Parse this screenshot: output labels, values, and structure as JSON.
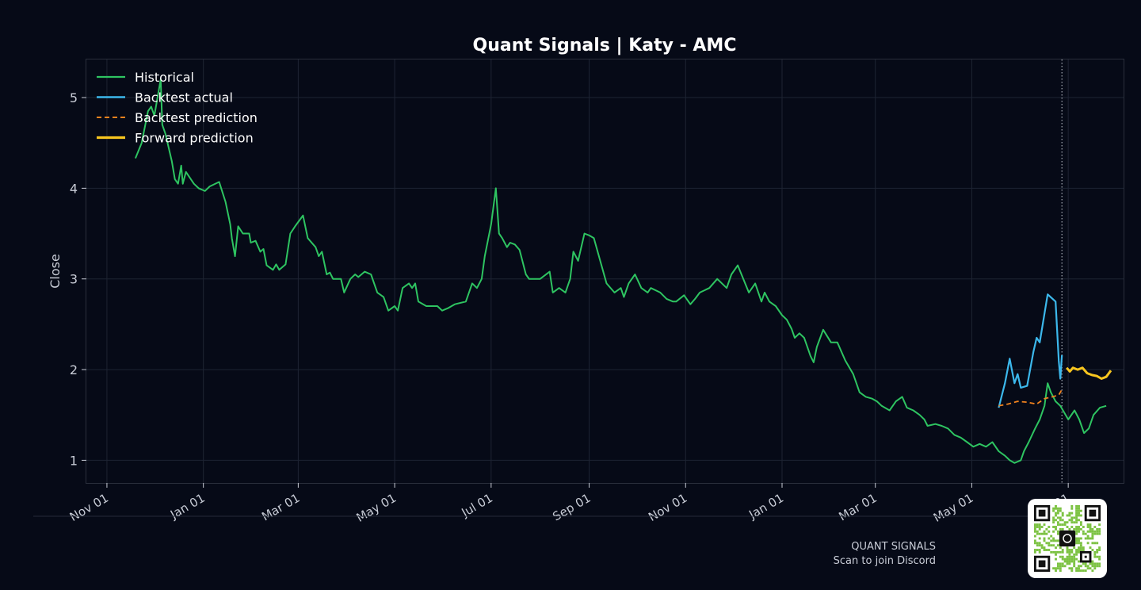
{
  "chart_data": {
    "type": "line",
    "title": "Quant Signals | Katy - AMC",
    "xlabel": "",
    "ylabel": "Close",
    "ylim": [
      0.75,
      5.42
    ],
    "xlim": [
      "2023-10-19",
      "2025-08-05"
    ],
    "grid": true,
    "legend_position": "top-left",
    "x_tick_labels": [
      "Nov 01",
      "Jan 01",
      "Mar 01",
      "May 01",
      "Jul 01",
      "Sep 01",
      "Nov 01",
      "Jan 01",
      "Mar 01",
      "May 01",
      "Jul 01"
    ],
    "x_tick_dates": [
      "2023-11-01",
      "2024-01-01",
      "2024-03-01",
      "2024-05-01",
      "2024-07-01",
      "2024-09-01",
      "2024-11-01",
      "2025-01-01",
      "2025-03-01",
      "2025-05-01",
      "2025-07-01"
    ],
    "y_ticks": [
      1,
      2,
      3,
      4,
      5
    ],
    "vline_date": "2025-06-27",
    "colors": {
      "historical": "#2ec461",
      "backtest_actual": "#3cb8ec",
      "backtest_prediction": "#f0821e",
      "forward_prediction": "#f7c51f",
      "background": "#060a17",
      "plot_border": "#2a2f3c",
      "grid": "#1e2433",
      "text": "#c8ccd6"
    },
    "series": [
      {
        "name": "Historical",
        "style": "solid",
        "points": [
          [
            "2023-11-19",
            4.33
          ],
          [
            "2023-11-23",
            4.5
          ],
          [
            "2023-11-27",
            4.85
          ],
          [
            "2023-11-29",
            4.9
          ],
          [
            "2023-12-01",
            4.8
          ],
          [
            "2023-12-05",
            5.2
          ],
          [
            "2023-12-06",
            4.7
          ],
          [
            "2023-12-08",
            4.6
          ],
          [
            "2023-12-12",
            4.3
          ],
          [
            "2023-12-14",
            4.1
          ],
          [
            "2023-12-16",
            4.05
          ],
          [
            "2023-12-18",
            4.25
          ],
          [
            "2023-12-19",
            4.05
          ],
          [
            "2023-12-21",
            4.18
          ],
          [
            "2023-12-26",
            4.05
          ],
          [
            "2023-12-29",
            4.0
          ],
          [
            "2024-01-02",
            3.97
          ],
          [
            "2024-01-05",
            4.02
          ],
          [
            "2024-01-11",
            4.07
          ],
          [
            "2024-01-15",
            3.85
          ],
          [
            "2024-01-18",
            3.6
          ],
          [
            "2024-01-19",
            3.45
          ],
          [
            "2024-01-21",
            3.25
          ],
          [
            "2024-01-23",
            3.58
          ],
          [
            "2024-01-26",
            3.5
          ],
          [
            "2024-01-30",
            3.5
          ],
          [
            "2024-01-31",
            3.4
          ],
          [
            "2024-02-03",
            3.42
          ],
          [
            "2024-02-06",
            3.3
          ],
          [
            "2024-02-08",
            3.33
          ],
          [
            "2024-02-10",
            3.15
          ],
          [
            "2024-02-14",
            3.1
          ],
          [
            "2024-02-16",
            3.16
          ],
          [
            "2024-02-18",
            3.1
          ],
          [
            "2024-02-22",
            3.16
          ],
          [
            "2024-02-25",
            3.5
          ],
          [
            "2024-02-28",
            3.58
          ],
          [
            "2024-03-04",
            3.7
          ],
          [
            "2024-03-07",
            3.45
          ],
          [
            "2024-03-12",
            3.35
          ],
          [
            "2024-03-14",
            3.25
          ],
          [
            "2024-03-16",
            3.3
          ],
          [
            "2024-03-19",
            3.05
          ],
          [
            "2024-03-21",
            3.07
          ],
          [
            "2024-03-23",
            3.0
          ],
          [
            "2024-03-28",
            3.0
          ],
          [
            "2024-03-30",
            2.85
          ],
          [
            "2024-04-03",
            3.0
          ],
          [
            "2024-04-06",
            3.05
          ],
          [
            "2024-04-08",
            3.02
          ],
          [
            "2024-04-12",
            3.08
          ],
          [
            "2024-04-16",
            3.05
          ],
          [
            "2024-04-20",
            2.85
          ],
          [
            "2024-04-24",
            2.8
          ],
          [
            "2024-04-27",
            2.65
          ],
          [
            "2024-05-01",
            2.7
          ],
          [
            "2024-05-03",
            2.65
          ],
          [
            "2024-05-06",
            2.9
          ],
          [
            "2024-05-10",
            2.95
          ],
          [
            "2024-05-12",
            2.9
          ],
          [
            "2024-05-14",
            2.95
          ],
          [
            "2024-05-16",
            2.75
          ],
          [
            "2024-05-21",
            2.7
          ],
          [
            "2024-05-28",
            2.7
          ],
          [
            "2024-05-31",
            2.65
          ],
          [
            "2024-06-04",
            2.68
          ],
          [
            "2024-06-08",
            2.72
          ],
          [
            "2024-06-15",
            2.75
          ],
          [
            "2024-06-19",
            2.95
          ],
          [
            "2024-06-22",
            2.9
          ],
          [
            "2024-06-25",
            3.0
          ],
          [
            "2024-06-27",
            3.25
          ],
          [
            "2024-07-01",
            3.6
          ],
          [
            "2024-07-04",
            4.0
          ],
          [
            "2024-07-06",
            3.5
          ],
          [
            "2024-07-08",
            3.45
          ],
          [
            "2024-07-11",
            3.35
          ],
          [
            "2024-07-13",
            3.4
          ],
          [
            "2024-07-16",
            3.38
          ],
          [
            "2024-07-19",
            3.32
          ],
          [
            "2024-07-23",
            3.05
          ],
          [
            "2024-07-25",
            3.0
          ],
          [
            "2024-08-01",
            3.0
          ],
          [
            "2024-08-07",
            3.08
          ],
          [
            "2024-08-09",
            2.85
          ],
          [
            "2024-08-13",
            2.9
          ],
          [
            "2024-08-17",
            2.85
          ],
          [
            "2024-08-20",
            3.0
          ],
          [
            "2024-08-22",
            3.3
          ],
          [
            "2024-08-25",
            3.2
          ],
          [
            "2024-08-29",
            3.5
          ],
          [
            "2024-09-01",
            3.48
          ],
          [
            "2024-09-04",
            3.45
          ],
          [
            "2024-09-08",
            3.2
          ],
          [
            "2024-09-12",
            2.95
          ],
          [
            "2024-09-17",
            2.85
          ],
          [
            "2024-09-21",
            2.9
          ],
          [
            "2024-09-23",
            2.8
          ],
          [
            "2024-09-26",
            2.95
          ],
          [
            "2024-09-30",
            3.05
          ],
          [
            "2024-10-04",
            2.9
          ],
          [
            "2024-10-08",
            2.85
          ],
          [
            "2024-10-10",
            2.9
          ],
          [
            "2024-10-16",
            2.85
          ],
          [
            "2024-10-20",
            2.78
          ],
          [
            "2024-10-24",
            2.75
          ],
          [
            "2024-10-26",
            2.75
          ],
          [
            "2024-10-31",
            2.82
          ],
          [
            "2024-11-04",
            2.72
          ],
          [
            "2024-11-07",
            2.78
          ],
          [
            "2024-11-10",
            2.85
          ],
          [
            "2024-11-16",
            2.9
          ],
          [
            "2024-11-21",
            3.0
          ],
          [
            "2024-11-27",
            2.9
          ],
          [
            "2024-11-30",
            3.05
          ],
          [
            "2024-12-04",
            3.15
          ],
          [
            "2024-12-11",
            2.85
          ],
          [
            "2024-12-15",
            2.95
          ],
          [
            "2024-12-19",
            2.75
          ],
          [
            "2024-12-21",
            2.85
          ],
          [
            "2024-12-24",
            2.75
          ],
          [
            "2024-12-28",
            2.7
          ],
          [
            "2025-01-01",
            2.6
          ],
          [
            "2025-01-04",
            2.55
          ],
          [
            "2025-01-07",
            2.45
          ],
          [
            "2025-01-09",
            2.35
          ],
          [
            "2025-01-12",
            2.4
          ],
          [
            "2025-01-15",
            2.35
          ],
          [
            "2025-01-19",
            2.15
          ],
          [
            "2025-01-21",
            2.08
          ],
          [
            "2025-01-23",
            2.25
          ],
          [
            "2025-01-27",
            2.44
          ],
          [
            "2025-02-01",
            2.3
          ],
          [
            "2025-02-05",
            2.3
          ],
          [
            "2025-02-10",
            2.1
          ],
          [
            "2025-02-15",
            1.95
          ],
          [
            "2025-02-19",
            1.75
          ],
          [
            "2025-02-23",
            1.7
          ],
          [
            "2025-02-27",
            1.68
          ],
          [
            "2025-03-02",
            1.65
          ],
          [
            "2025-03-05",
            1.6
          ],
          [
            "2025-03-10",
            1.55
          ],
          [
            "2025-03-14",
            1.65
          ],
          [
            "2025-03-18",
            1.7
          ],
          [
            "2025-03-21",
            1.58
          ],
          [
            "2025-03-25",
            1.55
          ],
          [
            "2025-03-29",
            1.5
          ],
          [
            "2025-04-01",
            1.45
          ],
          [
            "2025-04-03",
            1.38
          ],
          [
            "2025-04-08",
            1.4
          ],
          [
            "2025-04-12",
            1.38
          ],
          [
            "2025-04-16",
            1.35
          ],
          [
            "2025-04-20",
            1.28
          ],
          [
            "2025-04-24",
            1.25
          ],
          [
            "2025-04-28",
            1.2
          ],
          [
            "2025-05-02",
            1.15
          ],
          [
            "2025-05-06",
            1.18
          ],
          [
            "2025-05-10",
            1.15
          ],
          [
            "2025-05-14",
            1.2
          ],
          [
            "2025-05-18",
            1.1
          ],
          [
            "2025-05-22",
            1.05
          ],
          [
            "2025-05-25",
            1.0
          ],
          [
            "2025-05-28",
            0.97
          ],
          [
            "2025-06-01",
            1.0
          ],
          [
            "2025-06-03",
            1.1
          ],
          [
            "2025-06-06",
            1.2
          ],
          [
            "2025-06-10",
            1.35
          ],
          [
            "2025-06-13",
            1.45
          ],
          [
            "2025-06-16",
            1.6
          ],
          [
            "2025-06-18",
            1.85
          ],
          [
            "2025-06-20",
            1.75
          ],
          [
            "2025-06-23",
            1.65
          ],
          [
            "2025-06-26",
            1.6
          ],
          [
            "2025-07-01",
            1.45
          ],
          [
            "2025-07-05",
            1.55
          ],
          [
            "2025-07-08",
            1.45
          ],
          [
            "2025-07-11",
            1.3
          ],
          [
            "2025-07-14",
            1.35
          ],
          [
            "2025-07-17",
            1.5
          ],
          [
            "2025-07-21",
            1.58
          ],
          [
            "2025-07-25",
            1.6
          ]
        ]
      },
      {
        "name": "Backtest actual",
        "style": "solid",
        "points": [
          [
            "2025-05-18",
            1.58
          ],
          [
            "2025-05-22",
            1.85
          ],
          [
            "2025-05-25",
            2.12
          ],
          [
            "2025-05-28",
            1.85
          ],
          [
            "2025-05-30",
            1.95
          ],
          [
            "2025-06-01",
            1.8
          ],
          [
            "2025-06-05",
            1.82
          ],
          [
            "2025-06-09",
            2.2
          ],
          [
            "2025-06-11",
            2.35
          ],
          [
            "2025-06-13",
            2.3
          ],
          [
            "2025-06-18",
            2.83
          ],
          [
            "2025-06-23",
            2.75
          ],
          [
            "2025-06-25",
            2.1
          ],
          [
            "2025-06-26",
            1.9
          ],
          [
            "2025-06-27",
            2.16
          ]
        ]
      },
      {
        "name": "Backtest prediction",
        "style": "dashed",
        "points": [
          [
            "2025-05-18",
            1.6
          ],
          [
            "2025-05-24",
            1.62
          ],
          [
            "2025-05-30",
            1.65
          ],
          [
            "2025-06-05",
            1.64
          ],
          [
            "2025-06-11",
            1.62
          ],
          [
            "2025-06-16",
            1.68
          ],
          [
            "2025-06-21",
            1.7
          ],
          [
            "2025-06-25",
            1.72
          ],
          [
            "2025-06-27",
            1.78
          ]
        ]
      },
      {
        "name": "Forward prediction",
        "style": "solid",
        "points": [
          [
            "2025-06-30",
            2.02
          ],
          [
            "2025-07-02",
            1.98
          ],
          [
            "2025-07-04",
            2.02
          ],
          [
            "2025-07-07",
            2.0
          ],
          [
            "2025-07-10",
            2.02
          ],
          [
            "2025-07-13",
            1.96
          ],
          [
            "2025-07-16",
            1.94
          ],
          [
            "2025-07-19",
            1.93
          ],
          [
            "2025-07-22",
            1.9
          ],
          [
            "2025-07-25",
            1.92
          ],
          [
            "2025-07-28",
            1.99
          ]
        ]
      }
    ]
  },
  "footer": {
    "brand": "QUANT SIGNALS",
    "cta": "Scan to join Discord"
  }
}
